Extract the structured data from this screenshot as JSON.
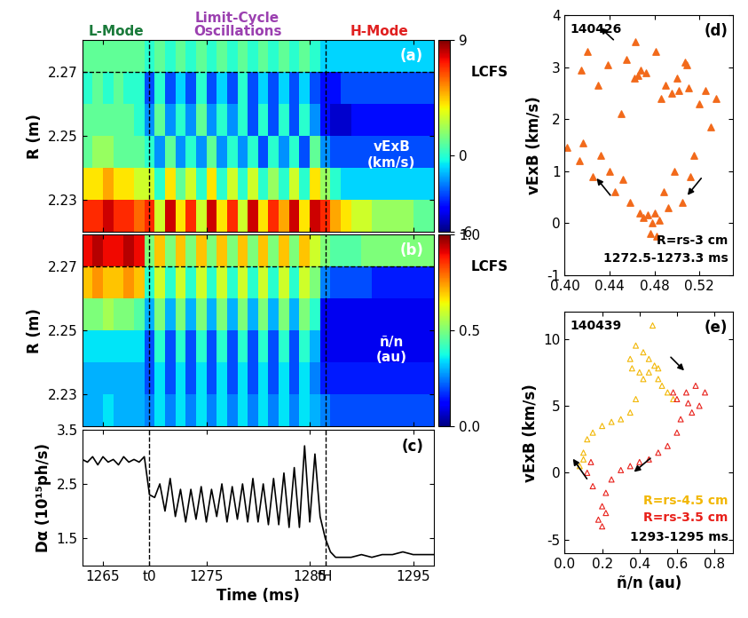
{
  "chart_data": [
    {
      "type": "heatmap",
      "panel_label": "(a)",
      "ylabel": "R (m)",
      "label": "vExB\n(km/s)",
      "xlim": [
        1263,
        1297
      ],
      "xticks": [
        1265,
        1275,
        1285,
        1295
      ],
      "tick_labels": "y",
      "ylim": [
        2.22,
        2.28
      ],
      "yticks": [
        2.23,
        2.25,
        2.27
      ],
      "vlines": [
        1269.5,
        1286.5
      ],
      "lcfs": 2.27,
      "lcfs_label": "LCFS",
      "phases": [
        {
          "text": "L-Mode",
          "color": "#1a7a3a"
        },
        {
          "text": "Limit-Cycle\nOscillations",
          "color": "#9b40b0"
        },
        {
          "text": "H-Mode",
          "color": "#e02020"
        }
      ],
      "x_edges": [
        1263,
        1264,
        1265,
        1266,
        1267,
        1268,
        1269,
        1270,
        1271,
        1272,
        1273,
        1274,
        1275,
        1276,
        1277,
        1278,
        1279,
        1280,
        1281,
        1282,
        1283,
        1284,
        1285,
        1286,
        1287,
        1288,
        1289,
        1290,
        1291,
        1292,
        1293,
        1294,
        1295,
        1296,
        1297
      ],
      "y_edges": [
        2.22,
        2.23,
        2.24,
        2.25,
        2.26,
        2.27,
        2.28
      ],
      "cells": [
        [
          7,
          7,
          8,
          7,
          7,
          6,
          7,
          3,
          8,
          4,
          7,
          3,
          8,
          4,
          7,
          3,
          8,
          4,
          7,
          5,
          8,
          4,
          8,
          7,
          5,
          4,
          3,
          3,
          2,
          2,
          2,
          2,
          1,
          1
        ],
        [
          4,
          4,
          5,
          4,
          4,
          3,
          3,
          0,
          4,
          1,
          3,
          0,
          4,
          0,
          3,
          0,
          3,
          0,
          2,
          0,
          3,
          0,
          4,
          2,
          0,
          -1,
          -1,
          -1,
          -1,
          -1,
          -1,
          -1,
          -1,
          -1
        ],
        [
          1,
          2,
          2,
          1,
          1,
          1,
          0,
          -2,
          1,
          -2,
          0,
          -2,
          1,
          -2,
          0,
          -2,
          0,
          -3,
          0,
          -2,
          0,
          -3,
          1,
          -2,
          -3,
          -3,
          -3,
          -3,
          -3,
          -3,
          -3,
          -3,
          -3,
          -3
        ],
        [
          1,
          1,
          1,
          1,
          1,
          0,
          -2,
          1,
          -2,
          0,
          -2,
          1,
          -2,
          0,
          -2,
          0,
          -3,
          0,
          -3,
          0,
          -3,
          0,
          -2,
          -4,
          -5,
          -5,
          -4,
          -4,
          -4,
          -4,
          -4,
          -4,
          -4,
          -4
        ],
        [
          0,
          1,
          0,
          1,
          0,
          0,
          -3,
          0,
          -3,
          -1,
          -3,
          0,
          -3,
          -1,
          -3,
          0,
          -3,
          -1,
          -3,
          -1,
          -3,
          -1,
          -3,
          -4,
          -4,
          -3,
          -3,
          -3,
          -3,
          -3,
          -3,
          -3,
          -3,
          -3
        ],
        [
          1,
          1,
          1,
          1,
          1,
          1,
          0,
          1,
          0,
          1,
          0,
          1,
          0,
          1,
          0,
          1,
          0,
          1,
          0,
          1,
          0,
          1,
          0,
          -1,
          -1,
          -1,
          -1,
          -1,
          -1,
          -1,
          -1,
          -1,
          -1,
          -1
        ]
      ],
      "colorbar_range": [
        -6,
        9
      ],
      "colorbar_ticks": [
        -6,
        0,
        9
      ]
    },
    {
      "type": "heatmap",
      "panel_label": "(b)",
      "ylabel": "R (m)",
      "label": "ñ/n\n(au)",
      "xlim": [
        1263,
        1297
      ],
      "xticks": [
        1265,
        1275,
        1285,
        1295
      ],
      "tick_labels": "y",
      "ylim": [
        2.22,
        2.28
      ],
      "yticks": [
        2.23,
        2.25,
        2.27
      ],
      "vlines": [
        1269.5,
        1286.5
      ],
      "lcfs": 2.27,
      "lcfs_label": "LCFS",
      "x_edges": [
        1263,
        1264,
        1265,
        1266,
        1267,
        1268,
        1269,
        1270,
        1271,
        1272,
        1273,
        1274,
        1275,
        1276,
        1277,
        1278,
        1279,
        1280,
        1281,
        1282,
        1283,
        1284,
        1285,
        1286,
        1287,
        1288,
        1289,
        1290,
        1291,
        1292,
        1293,
        1294,
        1295,
        1296,
        1297
      ],
      "y_edges": [
        2.22,
        2.23,
        2.24,
        2.25,
        2.26,
        2.27,
        2.28
      ],
      "cells": [
        [
          0.3,
          0.3,
          0.35,
          0.3,
          0.3,
          0.3,
          0.25,
          0.35,
          0.25,
          0.35,
          0.25,
          0.35,
          0.25,
          0.35,
          0.25,
          0.35,
          0.25,
          0.35,
          0.25,
          0.35,
          0.25,
          0.35,
          0.3,
          0.25,
          0.2,
          0.2,
          0.2,
          0.2,
          0.2,
          0.2,
          0.2,
          0.2,
          0.2,
          0.2
        ],
        [
          0.3,
          0.3,
          0.3,
          0.3,
          0.3,
          0.3,
          0.2,
          0.35,
          0.2,
          0.35,
          0.2,
          0.35,
          0.2,
          0.35,
          0.2,
          0.35,
          0.2,
          0.35,
          0.2,
          0.35,
          0.2,
          0.35,
          0.25,
          0.15,
          0.15,
          0.15,
          0.15,
          0.15,
          0.15,
          0.15,
          0.15,
          0.15,
          0.15,
          0.15
        ],
        [
          0.35,
          0.35,
          0.35,
          0.35,
          0.35,
          0.35,
          0.2,
          0.4,
          0.2,
          0.4,
          0.2,
          0.4,
          0.2,
          0.4,
          0.2,
          0.4,
          0.2,
          0.4,
          0.2,
          0.4,
          0.2,
          0.4,
          0.3,
          0.1,
          0.1,
          0.1,
          0.1,
          0.1,
          0.1,
          0.1,
          0.1,
          0.1,
          0.1,
          0.1
        ],
        [
          0.5,
          0.5,
          0.55,
          0.5,
          0.5,
          0.45,
          0.3,
          0.5,
          0.3,
          0.5,
          0.3,
          0.5,
          0.3,
          0.5,
          0.3,
          0.5,
          0.3,
          0.5,
          0.3,
          0.5,
          0.3,
          0.5,
          0.4,
          0.1,
          0.1,
          0.1,
          0.1,
          0.1,
          0.1,
          0.1,
          0.1,
          0.1,
          0.1,
          0.1
        ],
        [
          0.7,
          0.75,
          0.7,
          0.7,
          0.75,
          0.7,
          0.4,
          0.6,
          0.4,
          0.6,
          0.4,
          0.6,
          0.4,
          0.6,
          0.4,
          0.6,
          0.4,
          0.6,
          0.4,
          0.6,
          0.4,
          0.6,
          0.5,
          0.25,
          0.2,
          0.2,
          0.2,
          0.2,
          0.15,
          0.15,
          0.15,
          0.15,
          0.15,
          0.15
        ],
        [
          0.9,
          0.95,
          0.9,
          0.9,
          0.95,
          0.9,
          0.5,
          0.7,
          0.5,
          0.7,
          0.5,
          0.7,
          0.5,
          0.7,
          0.5,
          0.7,
          0.5,
          0.7,
          0.5,
          0.7,
          0.5,
          0.7,
          0.6,
          0.5,
          0.45,
          0.45,
          0.45,
          0.5,
          0.5,
          0.5,
          0.5,
          0.5,
          0.5,
          0.5
        ]
      ],
      "colorbar_range": [
        0,
        1
      ],
      "colorbar_ticks": [
        {
          "value": 0,
          "label": "0.0"
        },
        {
          "value": 0.5,
          "label": "0.5"
        },
        {
          "value": 1,
          "label": "1.0"
        }
      ]
    },
    {
      "type": "line",
      "panel_label": "(c)",
      "xlabel": "Time (ms)",
      "ylabel": "Dα (10¹⁵ph/s)",
      "color": "#000000",
      "xlim": [
        1263,
        1297
      ],
      "xticks": [
        1265,
        {
          "value": 1269.5,
          "label": "t0"
        },
        1275,
        1285,
        {
          "value": 1286.5,
          "label": "tH"
        },
        1295
      ],
      "ylim": [
        1.0,
        3.5
      ],
      "yticks": [
        1.5,
        2.5,
        3.5
      ],
      "vlines": [
        1269.5,
        1286.5
      ],
      "x": [
        1263,
        1263.5,
        1264,
        1264.5,
        1265,
        1265.5,
        1266,
        1266.5,
        1267,
        1267.5,
        1268,
        1268.5,
        1269,
        1269.5,
        1270,
        1270.5,
        1271,
        1271.5,
        1272,
        1272.5,
        1273,
        1273.5,
        1274,
        1274.5,
        1275,
        1275.5,
        1276,
        1276.5,
        1277,
        1277.5,
        1278,
        1278.5,
        1279,
        1279.5,
        1280,
        1280.5,
        1281,
        1281.5,
        1282,
        1282.5,
        1283,
        1283.5,
        1284,
        1284.5,
        1285,
        1285.5,
        1286,
        1286.5,
        1287,
        1287.5,
        1288,
        1289,
        1290,
        1291,
        1292,
        1293,
        1294,
        1295,
        1296,
        1297
      ],
      "values": [
        2.95,
        2.9,
        3.0,
        2.85,
        3.0,
        2.9,
        2.95,
        2.85,
        3.0,
        2.9,
        2.95,
        2.9,
        3.0,
        2.3,
        2.25,
        2.5,
        2.0,
        2.6,
        1.9,
        2.4,
        1.8,
        2.4,
        1.85,
        2.45,
        1.8,
        2.4,
        1.9,
        2.5,
        1.8,
        2.45,
        1.85,
        2.5,
        1.8,
        2.6,
        1.8,
        2.5,
        1.75,
        2.6,
        1.75,
        2.7,
        1.7,
        2.8,
        1.7,
        3.2,
        1.8,
        3.05,
        1.9,
        1.5,
        1.25,
        1.15,
        1.15,
        1.15,
        1.2,
        1.15,
        1.2,
        1.2,
        1.25,
        1.2,
        1.2,
        1.2
      ]
    },
    {
      "type": "scatter",
      "panel_label": "(d)",
      "shot": "140426",
      "ylabel": "vExB (km/s)",
      "notes": [
        "R=rs-3 cm",
        "1272.5-1273.3 ms"
      ],
      "xlim": [
        0.4,
        0.55
      ],
      "xticks": [
        {
          "value": 0.4,
          "label": "0.40"
        },
        {
          "value": 0.44,
          "label": "0.44"
        },
        {
          "value": 0.48,
          "label": "0.48"
        },
        {
          "value": 0.52,
          "label": "0.52"
        }
      ],
      "ylim": [
        -1,
        4
      ],
      "yticks": [
        -1,
        0,
        1,
        2,
        3,
        4
      ],
      "series": [
        {
          "name": "R=rs-3 cm",
          "color": "#f26a1b",
          "marker": "triangle",
          "x": [
            0.402,
            0.413,
            0.416,
            0.415,
            0.42,
            0.425,
            0.43,
            0.432,
            0.438,
            0.44,
            0.445,
            0.45,
            0.452,
            0.455,
            0.458,
            0.462,
            0.463,
            0.465,
            0.467,
            0.468,
            0.47,
            0.472,
            0.474,
            0.476,
            0.478,
            0.48,
            0.481,
            0.482,
            0.484,
            0.486,
            0.488,
            0.49,
            0.492,
            0.495,
            0.498,
            0.5,
            0.502,
            0.505,
            0.507,
            0.509,
            0.51,
            0.512,
            0.515,
            0.52,
            0.525,
            0.53,
            0.535
          ],
          "values": [
            1.45,
            1.2,
            1.55,
            2.95,
            3.3,
            0.9,
            2.65,
            1.3,
            3.05,
            1.0,
            0.6,
            2.1,
            0.85,
            3.15,
            0.4,
            2.8,
            3.5,
            2.85,
            0.2,
            2.95,
            0.1,
            2.9,
            0.15,
            -0.2,
            0.0,
            0.2,
            3.3,
            -0.25,
            0.05,
            2.4,
            0.6,
            2.65,
            0.3,
            2.5,
            1.0,
            2.8,
            2.55,
            0.4,
            3.1,
            3.05,
            2.6,
            0.9,
            1.3,
            2.3,
            2.55,
            1.85,
            2.4
          ]
        }
      ]
    },
    {
      "type": "scatter",
      "panel_label": "(e)",
      "shot": "140439",
      "xlabel": "ñ/n (au)",
      "ylabel": "vExB (km/s)",
      "notes": [
        "1293-1295 ms"
      ],
      "xlim": [
        0.0,
        0.9
      ],
      "xticks": [
        {
          "value": 0.0,
          "label": "0.0"
        },
        {
          "value": 0.2,
          "label": "0.2"
        },
        {
          "value": 0.4,
          "label": "0.4"
        },
        {
          "value": 0.6,
          "label": "0.6"
        },
        {
          "value": 0.8,
          "label": "0.8"
        }
      ],
      "ylim": [
        -6,
        12
      ],
      "yticks": [
        -5,
        0,
        5,
        10
      ],
      "series": [
        {
          "name": "R=rs-4.5 cm",
          "color": "#f2b705",
          "marker": "triangle_open",
          "x": [
            0.08,
            0.1,
            0.12,
            0.1,
            0.15,
            0.2,
            0.25,
            0.3,
            0.35,
            0.38,
            0.4,
            0.35,
            0.38,
            0.42,
            0.45,
            0.48,
            0.45,
            0.5,
            0.47,
            0.52,
            0.55,
            0.58,
            0.42,
            0.36,
            0.5
          ],
          "values": [
            0.5,
            1.5,
            2.5,
            1.0,
            3.0,
            3.5,
            3.8,
            4.0,
            4.5,
            5.5,
            7.5,
            8.5,
            9.5,
            9.0,
            8.5,
            8.0,
            7.5,
            7.0,
            11.0,
            6.5,
            6.0,
            5.5,
            7.0,
            7.8,
            7.8
          ]
        },
        {
          "name": "R=rs-3.5 cm",
          "color": "#e8201a",
          "marker": "triangle_open",
          "x": [
            0.6,
            0.65,
            0.7,
            0.72,
            0.75,
            0.68,
            0.62,
            0.6,
            0.55,
            0.5,
            0.45,
            0.4,
            0.35,
            0.3,
            0.25,
            0.22,
            0.2,
            0.18,
            0.2,
            0.22,
            0.15,
            0.12,
            0.14,
            0.66,
            0.58
          ],
          "values": [
            5.5,
            6.0,
            6.5,
            5.0,
            6.0,
            4.5,
            4.0,
            3.0,
            2.0,
            1.5,
            1.0,
            0.8,
            0.5,
            0.2,
            -0.5,
            -1.5,
            -2.5,
            -3.5,
            -4.0,
            -3.0,
            -1.0,
            0.0,
            0.8,
            5.2,
            6.0
          ]
        }
      ]
    }
  ]
}
